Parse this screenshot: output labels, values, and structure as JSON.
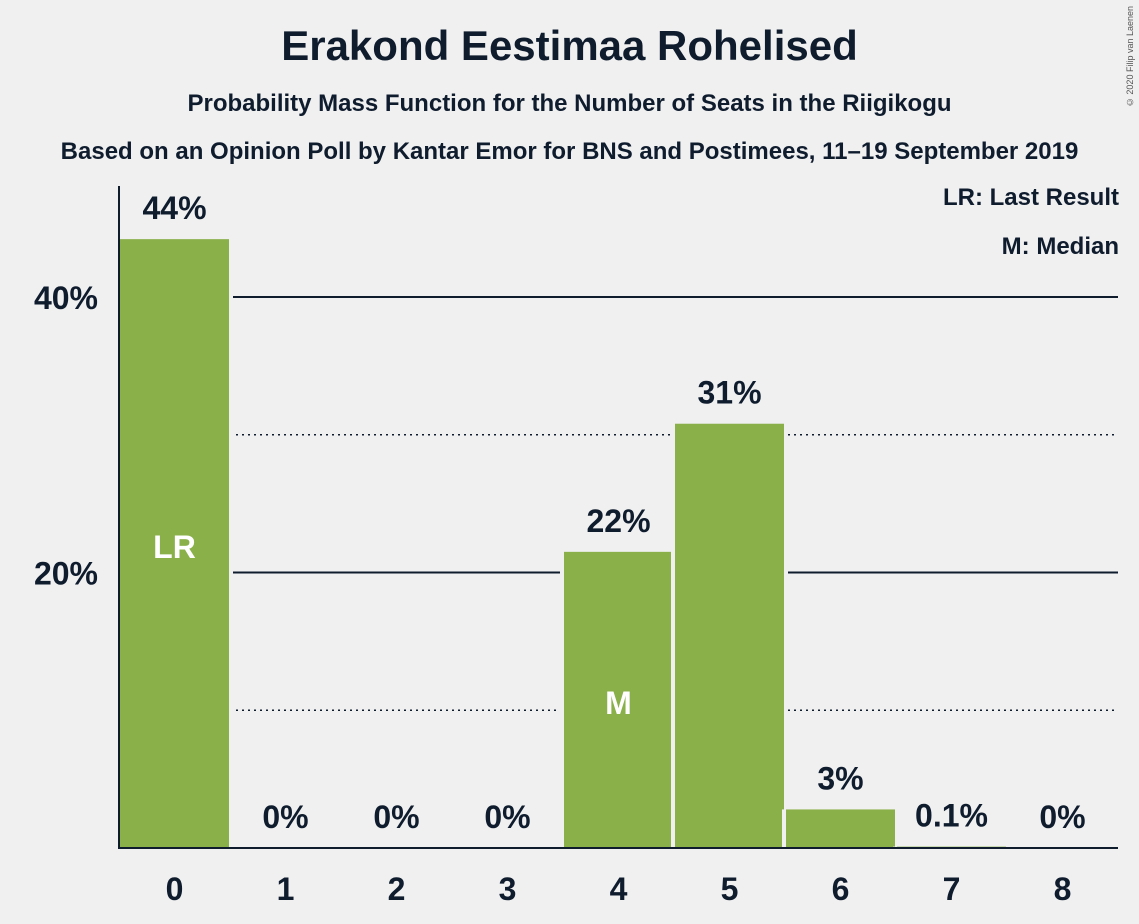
{
  "chart_data": {
    "type": "bar",
    "title": "Erakond Eestimaa Rohelised",
    "subtitle": "Probability Mass Function for the Number of Seats in the Riigikogu",
    "subtitle2": "Based on an Opinion Poll by Kantar Emor for BNS and Postimees, 11–19 September 2019",
    "copyright": "© 2020 Filip van Laenen",
    "legend": [
      "LR: Last Result",
      "M: Median"
    ],
    "categories": [
      "0",
      "1",
      "2",
      "3",
      "4",
      "5",
      "6",
      "7",
      "8"
    ],
    "values": [
      44.2,
      0,
      0,
      0,
      21.5,
      30.8,
      2.8,
      0.1,
      0
    ],
    "labels": [
      "44%",
      "0%",
      "0%",
      "0%",
      "22%",
      "31%",
      "3%",
      "0.1%",
      "0%"
    ],
    "bar_markers": [
      {
        "index": 0,
        "text": "LR"
      },
      {
        "index": 4,
        "text": "M"
      }
    ],
    "yticks": [
      {
        "value": 20,
        "label": "20%"
      },
      {
        "value": 40,
        "label": "40%"
      }
    ],
    "minor_gridlines": [
      10,
      30
    ],
    "ylim": [
      0,
      48
    ],
    "colors": {
      "bar": "#8ab04a",
      "text": "#0f1c2e",
      "marker_text": "#ffffff"
    }
  }
}
